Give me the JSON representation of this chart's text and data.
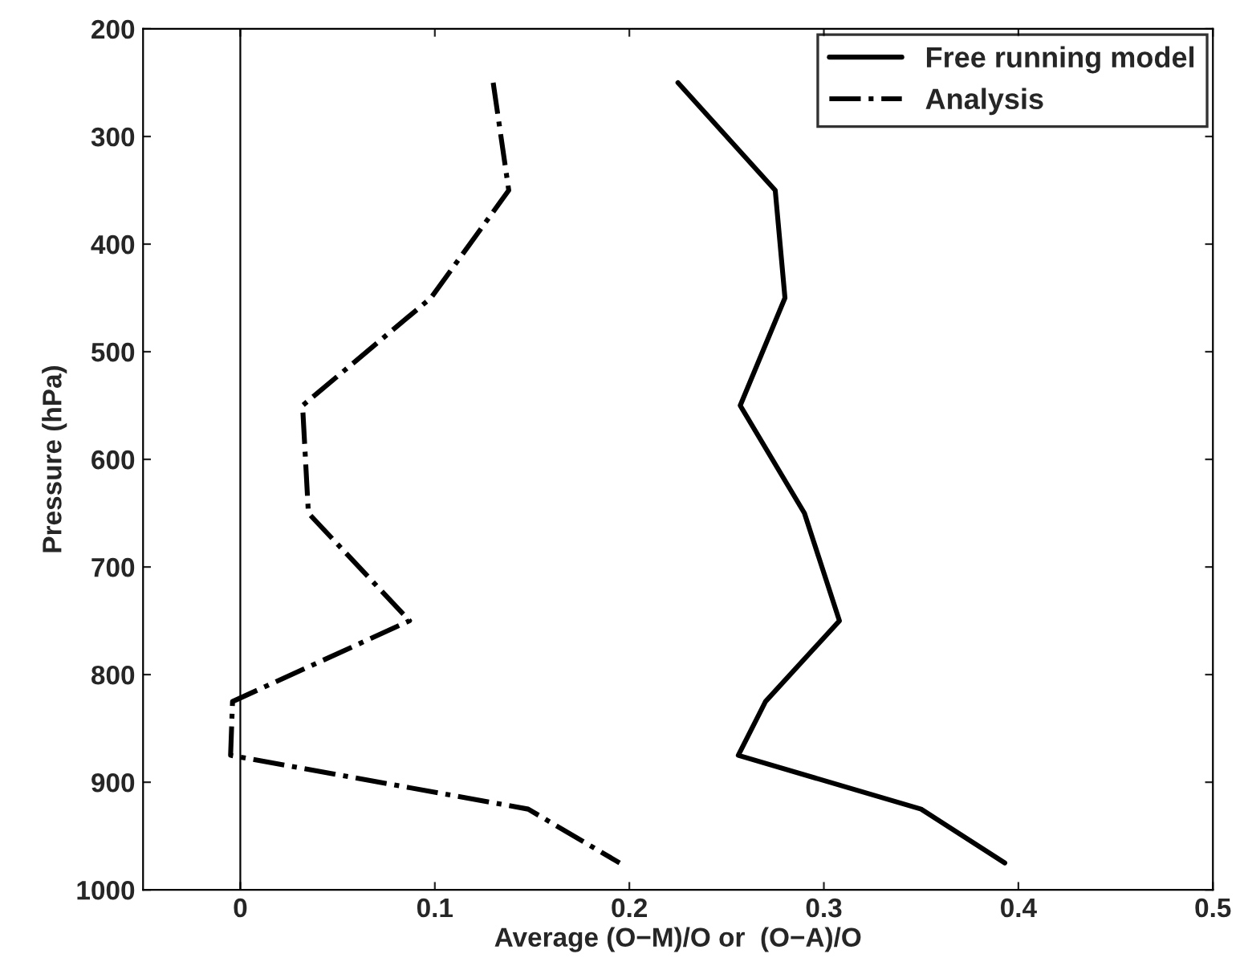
{
  "chart_data": {
    "type": "line",
    "xlabel": "Average (O−M)/O or  (O−A)/O",
    "ylabel": "Pressure (hPa)",
    "series": [
      {
        "name": "Free running model",
        "color": "#000000",
        "line_style": "solid",
        "x": [
          0.225,
          0.275,
          0.28,
          0.257,
          0.29,
          0.308,
          0.27,
          0.256,
          0.35,
          0.393
        ],
        "values": [
          250,
          350,
          450,
          550,
          650,
          750,
          825,
          875,
          925,
          975
        ]
      },
      {
        "name": "Analysis",
        "color": "#000000",
        "line_style": "dashdot",
        "x": [
          0.13,
          0.138,
          0.098,
          0.032,
          0.035,
          0.087,
          -0.004,
          -0.005,
          0.148,
          0.195
        ],
        "values": [
          250,
          350,
          450,
          550,
          650,
          750,
          825,
          875,
          925,
          975
        ]
      }
    ],
    "xlim": [
      -0.05,
      0.5
    ],
    "xticks": [
      0,
      0.1,
      0.2,
      0.3,
      0.4,
      0.5
    ],
    "ylim": [
      1000,
      200
    ],
    "yticks": [
      200,
      300,
      400,
      500,
      600,
      700,
      800,
      900,
      1000
    ],
    "ref_lines": [
      {
        "axis": "x",
        "value": 0,
        "color": "#000000",
        "line_style": "solid"
      }
    ],
    "grid": false,
    "legend": "top right"
  }
}
